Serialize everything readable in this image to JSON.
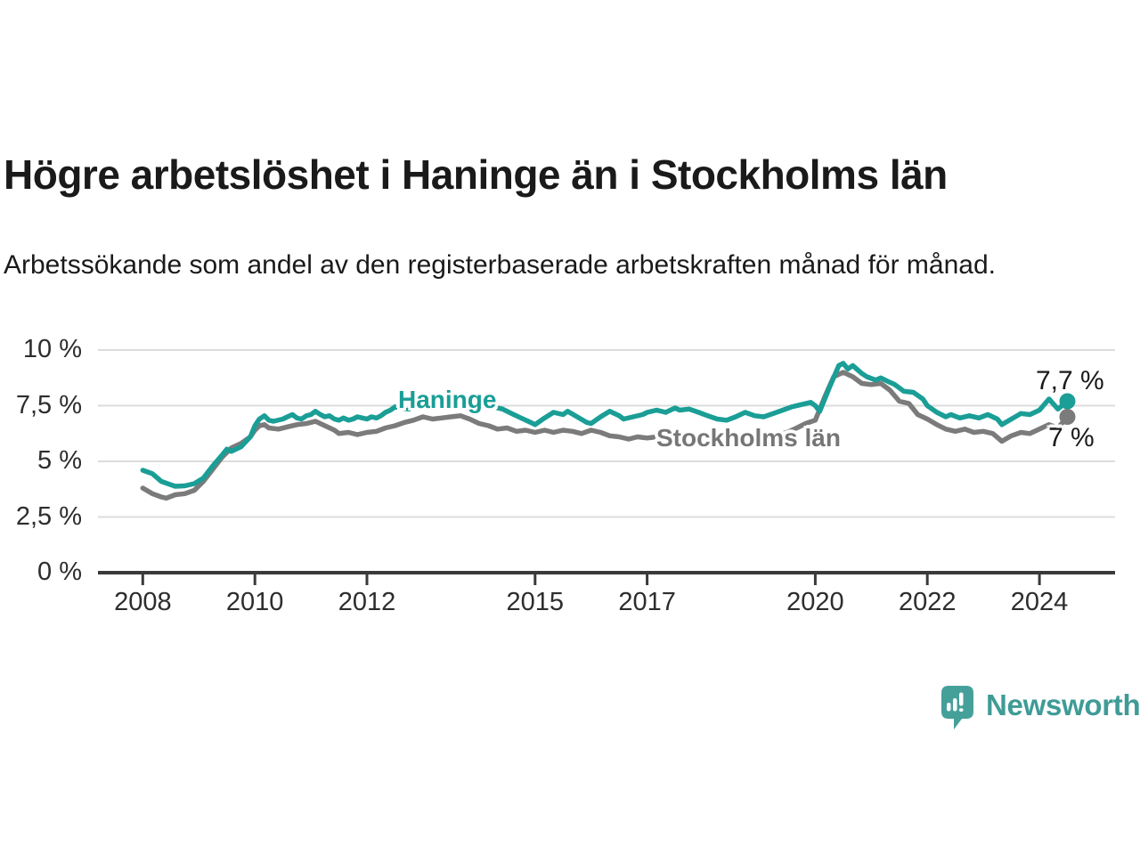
{
  "header": {
    "title": "Högre arbetslöshet i Haninge än i Stockholms län",
    "subtitle": "Arbetssökande som andel av den registerbaserade arbetskraften månad för månad."
  },
  "chart_data": {
    "type": "line",
    "title": "Högre arbetslöshet i Haninge än i Stockholms län",
    "xlabel": "",
    "ylabel": "",
    "grid": "horizontal",
    "legend": "inline-labels-on-lines",
    "unit": "%",
    "xlim": [
      2007.2,
      2025.35
    ],
    "ylim": [
      0,
      10
    ],
    "x_tick_years": [
      2008,
      2010,
      2012,
      2015,
      2017,
      2020,
      2022,
      2024
    ],
    "x_tick_labels": [
      "2008",
      "2010",
      "2012",
      "2015",
      "2017",
      "2020",
      "2022",
      "2024"
    ],
    "y_tick_values": [
      0,
      2.5,
      5,
      7.5,
      10
    ],
    "y_tick_labels": [
      "0 %",
      "2,5 %",
      "5 %",
      "7,5 %",
      "10 %"
    ],
    "series": [
      {
        "name": "Haninge",
        "color": "#1a9e96",
        "end_label": "7,7 %",
        "end_value": 7.7,
        "points": [
          [
            2008.0,
            4.6
          ],
          [
            2008.17,
            4.45
          ],
          [
            2008.33,
            4.1
          ],
          [
            2008.5,
            3.95
          ],
          [
            2008.58,
            3.88
          ],
          [
            2008.75,
            3.9
          ],
          [
            2008.92,
            4.0
          ],
          [
            2009.08,
            4.25
          ],
          [
            2009.25,
            4.8
          ],
          [
            2009.42,
            5.3
          ],
          [
            2009.5,
            5.55
          ],
          [
            2009.58,
            5.45
          ],
          [
            2009.75,
            5.65
          ],
          [
            2009.92,
            6.1
          ],
          [
            2010.0,
            6.6
          ],
          [
            2010.08,
            6.9
          ],
          [
            2010.17,
            7.05
          ],
          [
            2010.25,
            6.85
          ],
          [
            2010.33,
            6.8
          ],
          [
            2010.5,
            6.9
          ],
          [
            2010.58,
            7.0
          ],
          [
            2010.67,
            7.1
          ],
          [
            2010.75,
            6.95
          ],
          [
            2010.83,
            6.9
          ],
          [
            2010.92,
            7.05
          ],
          [
            2011.0,
            7.1
          ],
          [
            2011.08,
            7.25
          ],
          [
            2011.17,
            7.1
          ],
          [
            2011.25,
            7.0
          ],
          [
            2011.33,
            7.05
          ],
          [
            2011.42,
            6.9
          ],
          [
            2011.5,
            6.85
          ],
          [
            2011.58,
            6.95
          ],
          [
            2011.67,
            6.85
          ],
          [
            2011.75,
            6.9
          ],
          [
            2011.83,
            7.0
          ],
          [
            2011.92,
            6.95
          ],
          [
            2012.0,
            6.9
          ],
          [
            2012.08,
            7.0
          ],
          [
            2012.17,
            6.95
          ],
          [
            2012.25,
            7.05
          ],
          [
            2012.33,
            7.2
          ],
          [
            2012.42,
            7.3
          ],
          [
            2012.5,
            7.45
          ],
          [
            2012.58,
            7.4
          ],
          [
            2012.75,
            7.35
          ],
          [
            2012.92,
            7.45
          ],
          [
            2013.08,
            7.5
          ],
          [
            2013.25,
            7.4
          ],
          [
            2013.42,
            7.45
          ],
          [
            2013.58,
            7.4
          ],
          [
            2013.75,
            7.5
          ],
          [
            2013.92,
            7.45
          ],
          [
            2014.08,
            7.4
          ],
          [
            2014.25,
            7.45
          ],
          [
            2014.42,
            7.35
          ],
          [
            2014.58,
            7.15
          ],
          [
            2014.75,
            6.95
          ],
          [
            2014.92,
            6.75
          ],
          [
            2015.0,
            6.65
          ],
          [
            2015.17,
            6.95
          ],
          [
            2015.33,
            7.2
          ],
          [
            2015.5,
            7.1
          ],
          [
            2015.58,
            7.25
          ],
          [
            2015.75,
            7.0
          ],
          [
            2015.92,
            6.75
          ],
          [
            2016.0,
            6.7
          ],
          [
            2016.17,
            7.0
          ],
          [
            2016.33,
            7.25
          ],
          [
            2016.5,
            7.05
          ],
          [
            2016.58,
            6.9
          ],
          [
            2016.75,
            7.0
          ],
          [
            2016.92,
            7.1
          ],
          [
            2017.0,
            7.2
          ],
          [
            2017.17,
            7.3
          ],
          [
            2017.33,
            7.2
          ],
          [
            2017.5,
            7.4
          ],
          [
            2017.58,
            7.3
          ],
          [
            2017.75,
            7.35
          ],
          [
            2017.92,
            7.2
          ],
          [
            2018.08,
            7.05
          ],
          [
            2018.25,
            6.9
          ],
          [
            2018.42,
            6.85
          ],
          [
            2018.58,
            7.0
          ],
          [
            2018.75,
            7.2
          ],
          [
            2018.92,
            7.05
          ],
          [
            2019.08,
            7.0
          ],
          [
            2019.25,
            7.15
          ],
          [
            2019.42,
            7.3
          ],
          [
            2019.58,
            7.45
          ],
          [
            2019.75,
            7.55
          ],
          [
            2019.92,
            7.65
          ],
          [
            2020.0,
            7.5
          ],
          [
            2020.08,
            7.25
          ],
          [
            2020.25,
            8.3
          ],
          [
            2020.42,
            9.3
          ],
          [
            2020.5,
            9.4
          ],
          [
            2020.58,
            9.15
          ],
          [
            2020.67,
            9.3
          ],
          [
            2020.83,
            8.95
          ],
          [
            2020.92,
            8.8
          ],
          [
            2021.08,
            8.65
          ],
          [
            2021.17,
            8.75
          ],
          [
            2021.33,
            8.55
          ],
          [
            2021.42,
            8.45
          ],
          [
            2021.58,
            8.15
          ],
          [
            2021.75,
            8.1
          ],
          [
            2021.92,
            7.8
          ],
          [
            2022.0,
            7.5
          ],
          [
            2022.17,
            7.2
          ],
          [
            2022.33,
            7.0
          ],
          [
            2022.42,
            7.1
          ],
          [
            2022.58,
            6.95
          ],
          [
            2022.75,
            7.05
          ],
          [
            2022.92,
            6.95
          ],
          [
            2023.08,
            7.1
          ],
          [
            2023.25,
            6.9
          ],
          [
            2023.33,
            6.65
          ],
          [
            2023.5,
            6.9
          ],
          [
            2023.67,
            7.15
          ],
          [
            2023.83,
            7.1
          ],
          [
            2024.0,
            7.3
          ],
          [
            2024.17,
            7.8
          ],
          [
            2024.33,
            7.35
          ],
          [
            2024.5,
            7.7
          ]
        ]
      },
      {
        "name": "Stockholms län",
        "color": "#7b7b7b",
        "end_label": "7 %",
        "end_value": 7.0,
        "points": [
          [
            2008.0,
            3.8
          ],
          [
            2008.17,
            3.55
          ],
          [
            2008.33,
            3.4
          ],
          [
            2008.42,
            3.35
          ],
          [
            2008.58,
            3.5
          ],
          [
            2008.75,
            3.55
          ],
          [
            2008.92,
            3.7
          ],
          [
            2009.08,
            4.1
          ],
          [
            2009.25,
            4.65
          ],
          [
            2009.42,
            5.2
          ],
          [
            2009.58,
            5.6
          ],
          [
            2009.75,
            5.8
          ],
          [
            2009.92,
            6.1
          ],
          [
            2010.0,
            6.4
          ],
          [
            2010.08,
            6.6
          ],
          [
            2010.17,
            6.65
          ],
          [
            2010.25,
            6.5
          ],
          [
            2010.42,
            6.45
          ],
          [
            2010.58,
            6.55
          ],
          [
            2010.75,
            6.65
          ],
          [
            2010.92,
            6.7
          ],
          [
            2011.0,
            6.75
          ],
          [
            2011.08,
            6.8
          ],
          [
            2011.25,
            6.6
          ],
          [
            2011.42,
            6.4
          ],
          [
            2011.5,
            6.25
          ],
          [
            2011.67,
            6.3
          ],
          [
            2011.83,
            6.2
          ],
          [
            2012.0,
            6.3
          ],
          [
            2012.17,
            6.35
          ],
          [
            2012.33,
            6.5
          ],
          [
            2012.5,
            6.6
          ],
          [
            2012.67,
            6.75
          ],
          [
            2012.83,
            6.85
          ],
          [
            2013.0,
            7.0
          ],
          [
            2013.17,
            6.9
          ],
          [
            2013.33,
            6.95
          ],
          [
            2013.5,
            7.0
          ],
          [
            2013.67,
            7.05
          ],
          [
            2013.83,
            6.9
          ],
          [
            2014.0,
            6.7
          ],
          [
            2014.17,
            6.6
          ],
          [
            2014.33,
            6.45
          ],
          [
            2014.5,
            6.5
          ],
          [
            2014.67,
            6.35
          ],
          [
            2014.83,
            6.4
          ],
          [
            2015.0,
            6.3
          ],
          [
            2015.17,
            6.4
          ],
          [
            2015.33,
            6.3
          ],
          [
            2015.5,
            6.4
          ],
          [
            2015.67,
            6.35
          ],
          [
            2015.83,
            6.25
          ],
          [
            2016.0,
            6.4
          ],
          [
            2016.17,
            6.3
          ],
          [
            2016.33,
            6.15
          ],
          [
            2016.5,
            6.1
          ],
          [
            2016.67,
            6.0
          ],
          [
            2016.83,
            6.1
          ],
          [
            2017.0,
            6.05
          ],
          [
            2017.17,
            6.1
          ],
          [
            2017.33,
            6.0
          ],
          [
            2017.5,
            6.05
          ],
          [
            2017.67,
            6.1
          ],
          [
            2017.83,
            6.0
          ],
          [
            2018.0,
            5.95
          ],
          [
            2018.17,
            6.0
          ],
          [
            2018.33,
            5.9
          ],
          [
            2018.5,
            5.95
          ],
          [
            2018.67,
            6.0
          ],
          [
            2018.83,
            6.05
          ],
          [
            2019.0,
            6.0
          ],
          [
            2019.17,
            6.1
          ],
          [
            2019.33,
            6.2
          ],
          [
            2019.5,
            6.3
          ],
          [
            2019.67,
            6.5
          ],
          [
            2019.83,
            6.7
          ],
          [
            2020.0,
            6.85
          ],
          [
            2020.17,
            7.9
          ],
          [
            2020.33,
            8.8
          ],
          [
            2020.5,
            9.0
          ],
          [
            2020.67,
            8.8
          ],
          [
            2020.83,
            8.5
          ],
          [
            2021.0,
            8.45
          ],
          [
            2021.17,
            8.5
          ],
          [
            2021.33,
            8.2
          ],
          [
            2021.5,
            7.7
          ],
          [
            2021.67,
            7.6
          ],
          [
            2021.83,
            7.1
          ],
          [
            2022.0,
            6.9
          ],
          [
            2022.17,
            6.65
          ],
          [
            2022.33,
            6.45
          ],
          [
            2022.5,
            6.35
          ],
          [
            2022.67,
            6.45
          ],
          [
            2022.83,
            6.3
          ],
          [
            2023.0,
            6.35
          ],
          [
            2023.17,
            6.25
          ],
          [
            2023.33,
            5.9
          ],
          [
            2023.5,
            6.15
          ],
          [
            2023.67,
            6.3
          ],
          [
            2023.83,
            6.25
          ],
          [
            2024.0,
            6.45
          ],
          [
            2024.17,
            6.65
          ],
          [
            2024.33,
            6.5
          ],
          [
            2024.5,
            7.0
          ]
        ]
      }
    ]
  },
  "footer": {
    "brand": "Newsworthy",
    "brand_color": "#3f9b96",
    "icon": "newsworthy-chart-bubble-icon",
    "icon_color": "#46a09a"
  }
}
